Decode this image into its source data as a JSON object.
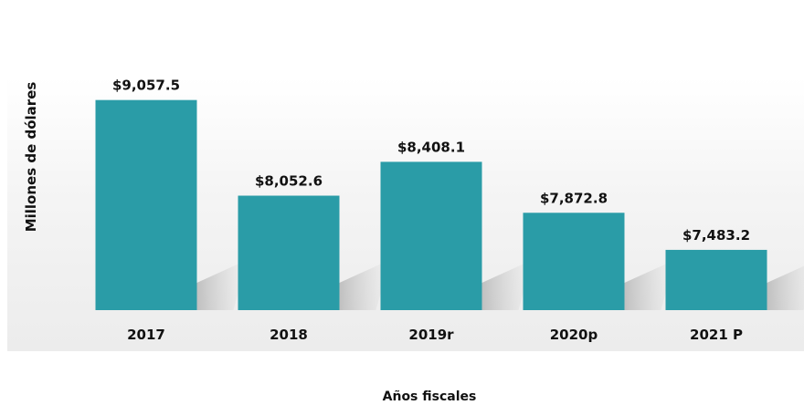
{
  "chart_data": {
    "type": "bar",
    "title": "",
    "xlabel": "Años fiscales",
    "ylabel": "Millones de dólares",
    "categories": [
      "2017",
      "2018",
      "2019r",
      "2020p",
      "2021 P"
    ],
    "values": [
      9057.5,
      8052.6,
      8408.1,
      7872.8,
      7483.2
    ],
    "value_labels": [
      "$9,057.5",
      "$8,052.6",
      "$8,408.1",
      "$7,872.8",
      "$7,483.2"
    ],
    "ylim": [
      6850,
      9150
    ],
    "grid": false,
    "legend": "none",
    "bar_color": "#2a9ca7"
  }
}
